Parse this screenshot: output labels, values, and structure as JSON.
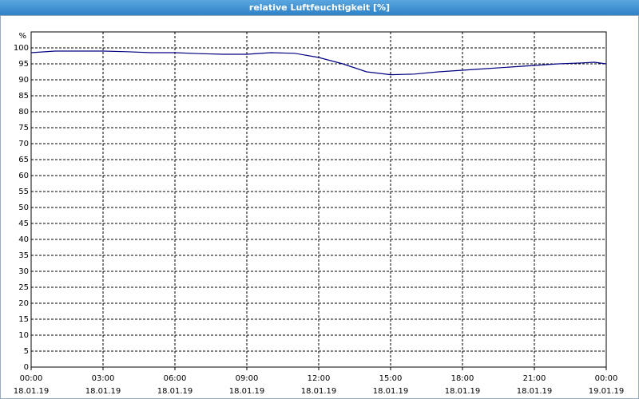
{
  "chart_data": {
    "type": "line",
    "title": "relative Luftfeuchtigkeit [%]",
    "y_unit": "%",
    "x": [
      0,
      1,
      2,
      3,
      4,
      5,
      6,
      7,
      8,
      9,
      10,
      11,
      12,
      13,
      14,
      15,
      16,
      17,
      18,
      19,
      20,
      21,
      22,
      23,
      23.5,
      24
    ],
    "series": [
      {
        "name": "relative Luftfeuchtigkeit",
        "color": "#00007f",
        "values": [
          98.5,
          99,
          99,
          99,
          98.8,
          98.5,
          98.5,
          98.2,
          98,
          98,
          98.5,
          98.3,
          97,
          95,
          92.5,
          91.6,
          91.8,
          92.5,
          93,
          93.5,
          94,
          94.5,
          95,
          95.3,
          95.5,
          95
        ]
      }
    ],
    "xlim": [
      0,
      24
    ],
    "xticks": [
      {
        "value": 0,
        "label": "00:00 18.01.19"
      },
      {
        "value": 3,
        "label": "03:00 18.01.19"
      },
      {
        "value": 6,
        "label": "06:00 18.01.19"
      },
      {
        "value": 9,
        "label": "09:00 18.01.19"
      },
      {
        "value": 12,
        "label": "12:00 18.01.19"
      },
      {
        "value": 15,
        "label": "15:00 18.01.19"
      },
      {
        "value": 18,
        "label": "18:00 18.01.19"
      },
      {
        "value": 21,
        "label": "21:00 18.01.19"
      },
      {
        "value": 24,
        "label": "00:00 19.01.19"
      }
    ],
    "ylim": [
      0,
      105
    ],
    "yticks": [
      0,
      5,
      10,
      15,
      20,
      25,
      30,
      35,
      40,
      45,
      50,
      55,
      60,
      65,
      70,
      75,
      80,
      85,
      90,
      95,
      100
    ],
    "grid": true
  }
}
